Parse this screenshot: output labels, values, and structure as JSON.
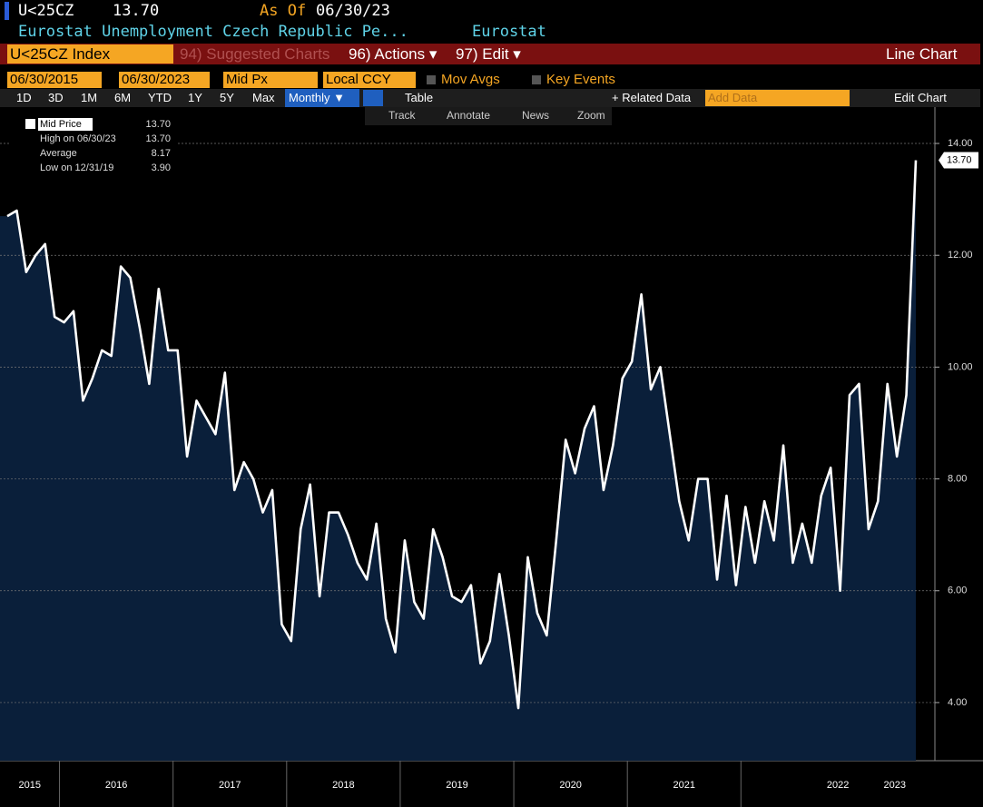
{
  "header": {
    "ticker": "U<25CZ",
    "price": "13.70",
    "as_of_label": "As Of",
    "as_of_date": "06/30/23",
    "description": "Eurostat Unemployment Czech Republic Pe...",
    "source": "Eurostat"
  },
  "menu": {
    "index": "U<25CZ Index",
    "items": [
      "94) Suggested Charts",
      "96) Actions ▾",
      "97) Edit ▾"
    ],
    "chart_type": "Line Chart"
  },
  "controls": {
    "start": "06/30/2015",
    "end": "06/30/2023",
    "field": "Mid Px",
    "currency": "Local CCY",
    "mov_avgs": "Mov Avgs",
    "key_events": "Key Events"
  },
  "toolbar": {
    "ranges": [
      "1D",
      "3D",
      "1M",
      "6M",
      "YTD",
      "1Y",
      "5Y",
      "Max"
    ],
    "periodicity": "Monthly ▼",
    "table": "Table",
    "related": "+ Related Data",
    "add_data": "Add Data",
    "edit_chart": "Edit Chart"
  },
  "tools": [
    "Track",
    "Annotate",
    "News",
    "Zoom"
  ],
  "chart_data": {
    "type": "line",
    "legend": [
      {
        "label": "Mid Price",
        "value": "13.70"
      },
      {
        "label": "High on 06/30/23",
        "value": "13.70"
      },
      {
        "label": "Average",
        "value": "8.17"
      },
      {
        "label": "Low on 12/31/19",
        "value": "3.90"
      }
    ],
    "x_labels": [
      "2015",
      "2016",
      "2017",
      "2018",
      "2019",
      "2020",
      "2021",
      "2022",
      "2023"
    ],
    "series": [
      {
        "name": "Mid Price",
        "color": "#ffffff",
        "fill": "#0a1f3a",
        "values": [
          12.7,
          12.8,
          11.7,
          12.0,
          12.2,
          10.9,
          10.8,
          11.0,
          9.4,
          9.8,
          10.3,
          10.2,
          11.8,
          11.6,
          10.7,
          9.7,
          11.4,
          10.3,
          10.3,
          8.4,
          9.4,
          9.1,
          8.8,
          9.9,
          7.8,
          8.3,
          8.0,
          7.4,
          7.8,
          5.4,
          5.1,
          7.1,
          7.9,
          5.9,
          7.4,
          7.4,
          7.0,
          6.5,
          6.2,
          7.2,
          5.5,
          4.9,
          6.9,
          5.8,
          5.5,
          7.1,
          6.6,
          5.9,
          5.8,
          6.1,
          4.7,
          5.1,
          6.3,
          5.2,
          3.9,
          6.6,
          5.6,
          5.2,
          6.9,
          8.7,
          8.1,
          8.9,
          9.3,
          7.8,
          8.6,
          9.8,
          10.1,
          11.3,
          9.6,
          10.0,
          8.8,
          7.6,
          6.9,
          8.0,
          8.0,
          6.2,
          7.7,
          6.1,
          7.5,
          6.5,
          7.6,
          6.9,
          8.6,
          6.5,
          7.2,
          6.5,
          7.7,
          8.2,
          6.0,
          9.5,
          9.7,
          7.1,
          7.6,
          9.7,
          8.4,
          9.5,
          13.7
        ],
        "last_label": "13.70"
      }
    ],
    "ylim": [
      2.96,
      14.65
    ],
    "yticks": [
      {
        "value": 4,
        "label": "4.00"
      },
      {
        "value": 6,
        "label": "6.00"
      },
      {
        "value": 8,
        "label": "8.00"
      },
      {
        "value": 10,
        "label": "10.00"
      },
      {
        "value": 12,
        "label": "12.00"
      },
      {
        "value": 14,
        "label": "14.00"
      }
    ],
    "grid": true
  }
}
